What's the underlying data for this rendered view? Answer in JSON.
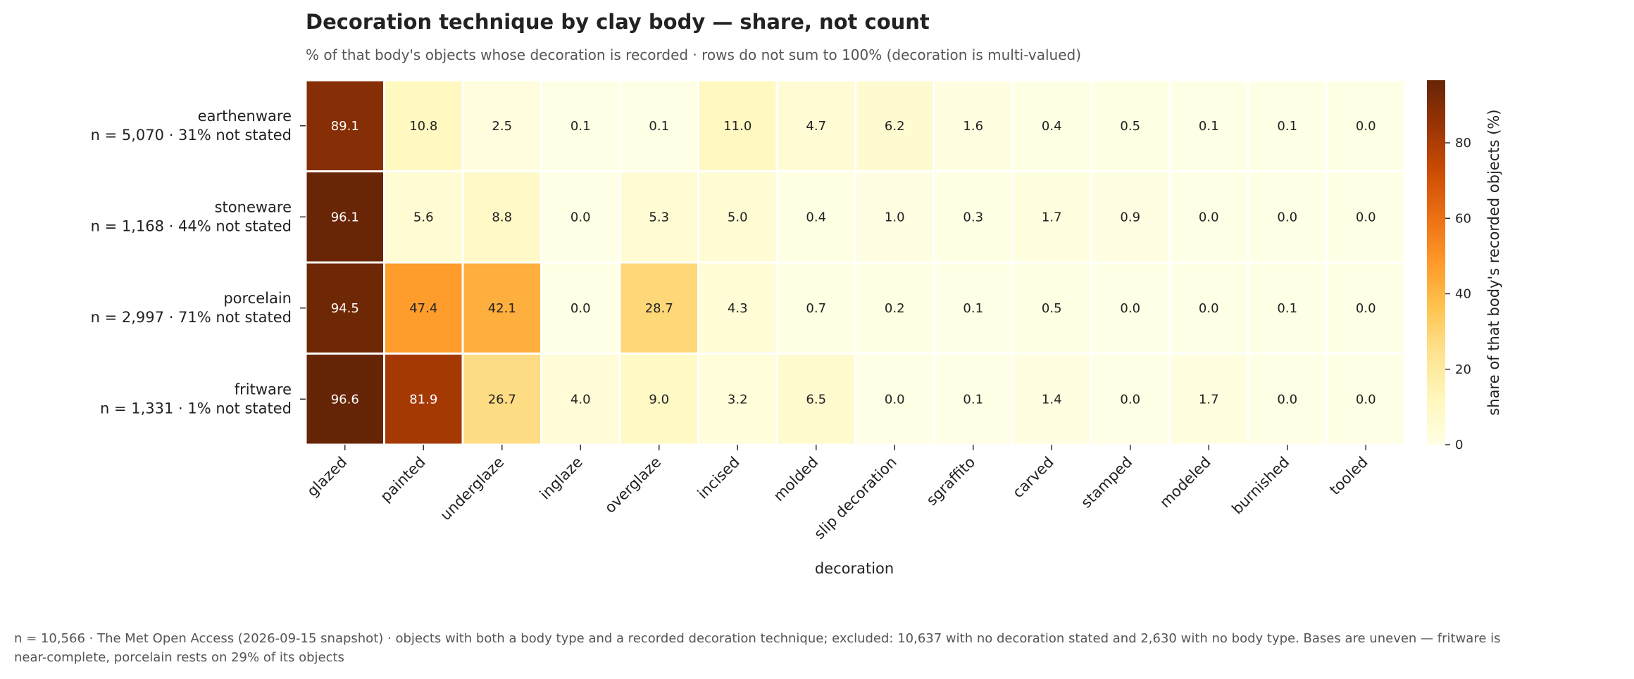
{
  "chart_data": {
    "type": "heatmap",
    "title": "Decoration technique by clay body — share, not count",
    "subtitle": "% of that body's objects whose decoration is recorded · rows do not sum to 100% (decoration is multi-valued)",
    "xlabel": "decoration",
    "colorbar_label": "share of that body's recorded objects (%)",
    "colorbar_ticks": [
      "0",
      "20",
      "40",
      "60",
      "80"
    ],
    "colorbar_range": [
      0,
      96.6
    ],
    "colormap": [
      "#ffffe5",
      "#fff7bc",
      "#fee391",
      "#fec44f",
      "#fe9929",
      "#ec7014",
      "#cc4c02",
      "#993404",
      "#662506"
    ],
    "x": [
      "glazed",
      "painted",
      "underglaze",
      "inglaze",
      "overglaze",
      "incised",
      "molded",
      "slip decoration",
      "sgraffito",
      "carved",
      "stamped",
      "modeled",
      "burnished",
      "tooled"
    ],
    "rows": [
      {
        "name": "earthenware",
        "n_label": "n = 5,070 · 31% not stated",
        "values": [
          89.1,
          10.8,
          2.5,
          0.1,
          0.1,
          11.0,
          4.7,
          6.2,
          1.6,
          0.4,
          0.5,
          0.1,
          0.1,
          0.0
        ]
      },
      {
        "name": "stoneware",
        "n_label": "n = 1,168 · 44% not stated",
        "values": [
          96.1,
          5.6,
          8.8,
          0.0,
          5.3,
          5.0,
          0.4,
          1.0,
          0.3,
          1.7,
          0.9,
          0.0,
          0.0,
          0.0
        ]
      },
      {
        "name": "porcelain",
        "n_label": "n = 2,997 · 71% not stated",
        "values": [
          94.5,
          47.4,
          42.1,
          0.0,
          28.7,
          4.3,
          0.7,
          0.2,
          0.1,
          0.5,
          0.0,
          0.0,
          0.1,
          0.0
        ]
      },
      {
        "name": "fritware",
        "n_label": "n = 1,331 · 1% not stated",
        "values": [
          96.6,
          81.9,
          26.7,
          4.0,
          9.0,
          3.2,
          6.5,
          0.0,
          0.1,
          1.4,
          0.0,
          1.7,
          0.0,
          0.0
        ]
      }
    ]
  },
  "footnote": {
    "line1": "n = 10,566 · The Met Open Access (2026-09-15 snapshot) · objects with both a body type and a recorded decoration technique; excluded: 10,637 with no decoration stated and 2,630 with no body type. Bases are uneven — fritware is",
    "line2": "near-complete, porcelain rests on 29% of its objects"
  }
}
